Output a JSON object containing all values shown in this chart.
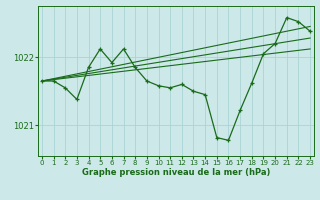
{
  "title": "Graphe pression niveau de la mer (hPa)",
  "background_color": "#cce8e8",
  "grid_color": "#aad4d4",
  "line_color": "#1a6b1a",
  "x_ticks": [
    0,
    1,
    2,
    3,
    4,
    5,
    6,
    7,
    8,
    9,
    10,
    11,
    12,
    13,
    14,
    15,
    16,
    17,
    18,
    19,
    20,
    21,
    22,
    23
  ],
  "y_ticks": [
    1021,
    1022
  ],
  "ylim": [
    1020.55,
    1022.75
  ],
  "xlim": [
    -0.3,
    23.3
  ],
  "main_line": {
    "x": [
      0,
      1,
      2,
      3,
      4,
      5,
      6,
      7,
      8,
      9,
      10,
      11,
      12,
      13,
      14,
      15,
      16,
      17,
      18,
      19,
      20,
      21,
      22,
      23
    ],
    "y": [
      1021.65,
      1021.65,
      1021.55,
      1021.38,
      1021.85,
      1022.12,
      1021.92,
      1022.12,
      1021.85,
      1021.65,
      1021.58,
      1021.55,
      1021.6,
      1021.5,
      1021.45,
      1020.82,
      1020.78,
      1021.22,
      1021.62,
      1022.05,
      1022.2,
      1022.58,
      1022.52,
      1022.38
    ]
  },
  "trend_line1": {
    "x": [
      0,
      23
    ],
    "y": [
      1021.65,
      1022.45
    ]
  },
  "trend_line2": {
    "x": [
      0,
      23
    ],
    "y": [
      1021.65,
      1022.28
    ]
  },
  "trend_line3": {
    "x": [
      0,
      23
    ],
    "y": [
      1021.65,
      1022.12
    ]
  }
}
